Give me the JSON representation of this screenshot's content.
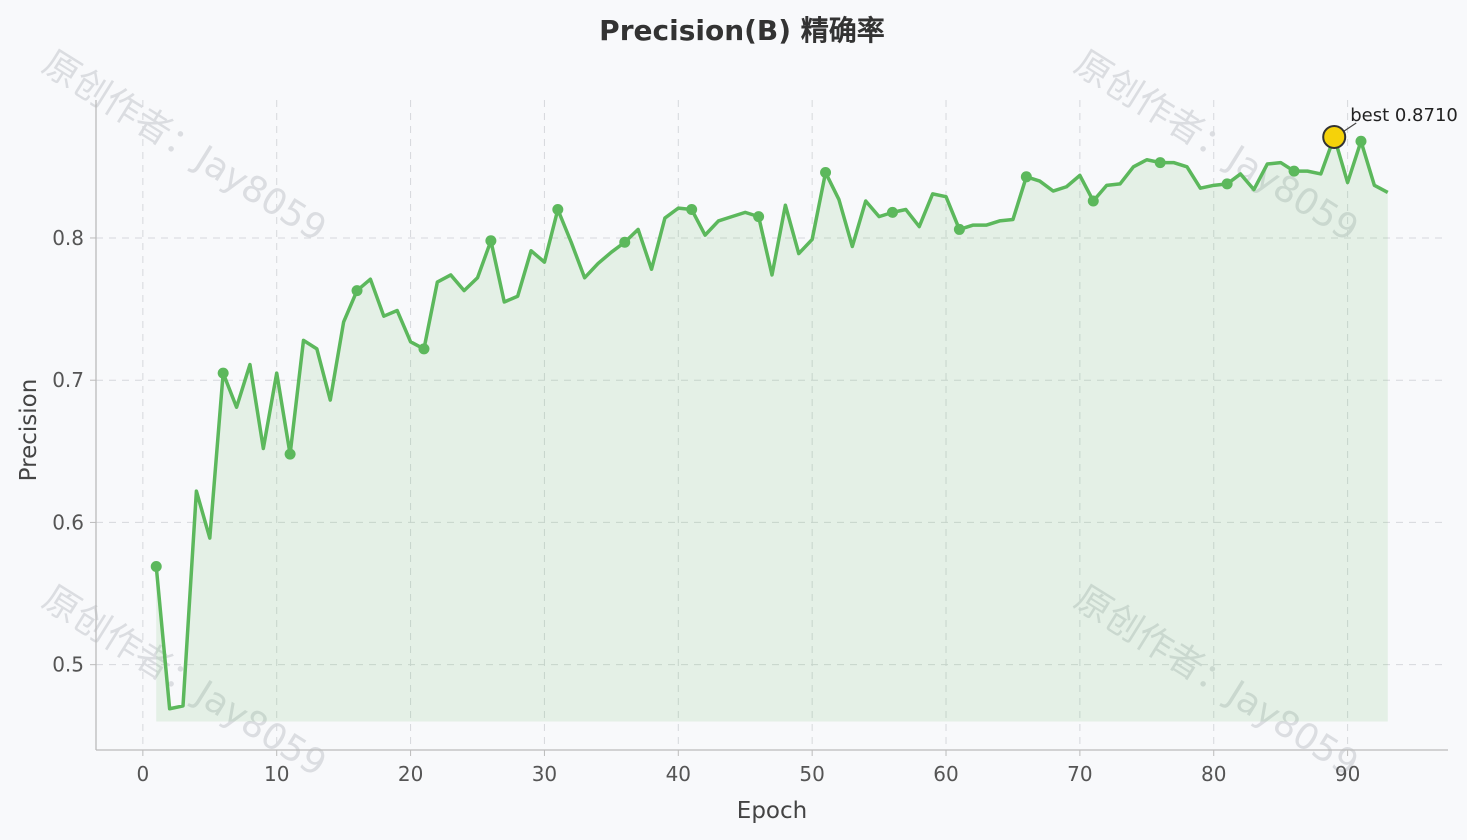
{
  "chart_data": {
    "type": "line",
    "title": "Precision(B) 精确率",
    "xlabel": "Epoch",
    "ylabel": "Precision",
    "xlim": [
      -3.5,
      97.5
    ],
    "ylim": [
      0.44,
      0.897
    ],
    "x_ticks": [
      0,
      10,
      20,
      30,
      40,
      50,
      60,
      70,
      80,
      90
    ],
    "y_ticks": [
      0.5,
      0.6,
      0.7,
      0.8
    ],
    "grid": true,
    "colors": {
      "line": "#5cb85c",
      "fill": "#5cb85c",
      "best_marker": "#f5d20a",
      "best_edge": "#333333"
    },
    "series": [
      {
        "x": [
          1,
          2,
          3,
          4,
          5,
          6,
          7,
          8,
          9,
          10,
          11,
          12,
          13,
          14,
          15,
          16,
          17,
          18,
          19,
          20,
          21,
          22,
          23,
          24,
          25,
          26,
          27,
          28,
          29,
          30,
          31,
          32,
          33,
          34,
          35,
          36,
          37,
          38,
          39,
          40,
          41,
          42,
          43,
          44,
          45,
          46,
          47,
          48,
          49,
          50,
          51,
          52,
          53,
          54,
          55,
          56,
          57,
          58,
          59,
          60,
          61,
          62,
          63,
          64,
          65,
          66,
          67,
          68,
          69,
          70,
          71,
          72,
          73,
          74,
          75,
          76,
          77,
          78,
          79,
          80,
          81,
          82,
          83,
          84,
          85,
          86,
          87,
          88,
          89,
          90,
          91,
          92,
          93
        ],
        "values": [
          0.569,
          0.469,
          0.471,
          0.622,
          0.589,
          0.705,
          0.681,
          0.711,
          0.652,
          0.705,
          0.648,
          0.728,
          0.722,
          0.686,
          0.741,
          0.763,
          0.771,
          0.745,
          0.749,
          0.727,
          0.722,
          0.769,
          0.774,
          0.763,
          0.772,
          0.798,
          0.755,
          0.759,
          0.791,
          0.783,
          0.82,
          0.797,
          0.772,
          0.782,
          0.79,
          0.797,
          0.806,
          0.778,
          0.814,
          0.821,
          0.82,
          0.802,
          0.812,
          0.815,
          0.818,
          0.815,
          0.774,
          0.823,
          0.789,
          0.799,
          0.846,
          0.827,
          0.794,
          0.826,
          0.815,
          0.818,
          0.82,
          0.808,
          0.831,
          0.829,
          0.806,
          0.809,
          0.809,
          0.812,
          0.813,
          0.843,
          0.84,
          0.833,
          0.836,
          0.844,
          0.826,
          0.837,
          0.838,
          0.85,
          0.855,
          0.853,
          0.853,
          0.85,
          0.835,
          0.837,
          0.838,
          0.845,
          0.834,
          0.852,
          0.853,
          0.847,
          0.847,
          0.845,
          0.871,
          0.839,
          0.868,
          0.837,
          0.832
        ]
      }
    ],
    "marker_every": 5,
    "fill_baseline": 0.46,
    "best": {
      "epoch": 89,
      "value": 0.871,
      "label": "best 0.8710"
    }
  },
  "watermark": "原创作者：Jay8059"
}
